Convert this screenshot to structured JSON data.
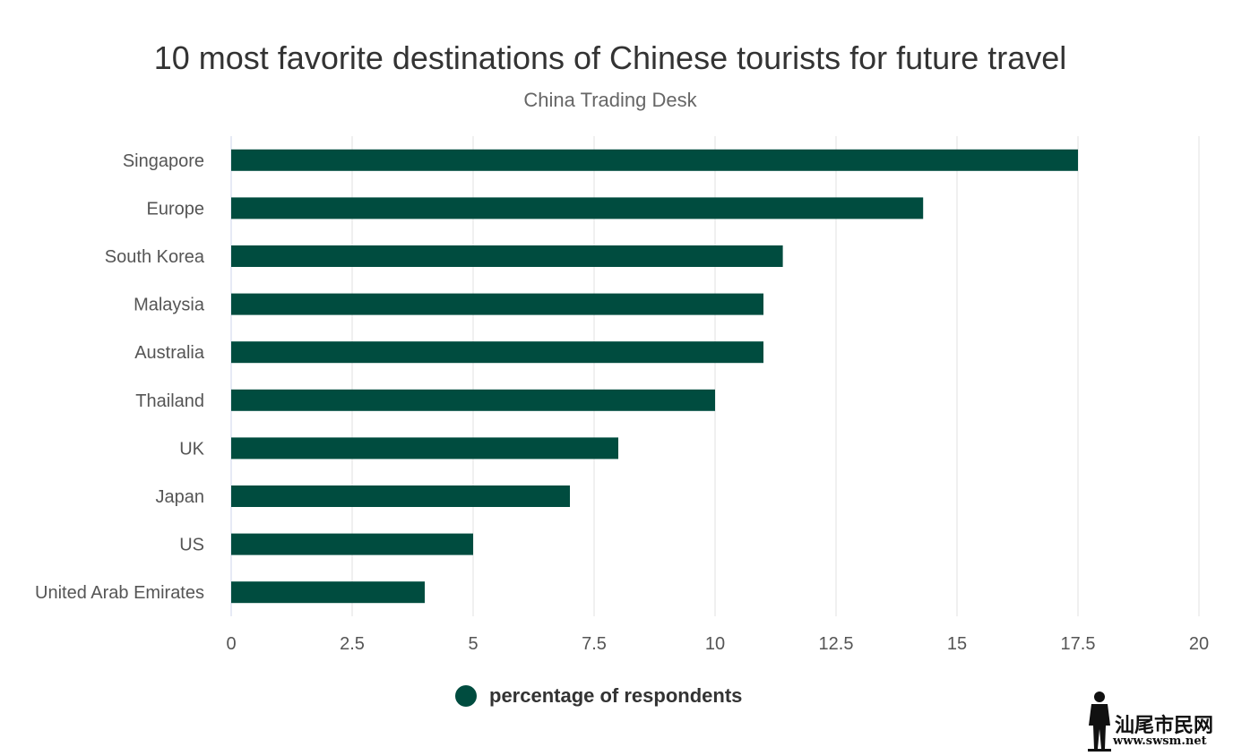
{
  "chart_data": {
    "type": "bar",
    "orientation": "horizontal",
    "title": "10 most favorite destinations of Chinese tourists for future travel",
    "subtitle": "China Trading Desk",
    "categories": [
      "Singapore",
      "Europe",
      "South Korea",
      "Malaysia",
      "Australia",
      "Thailand",
      "UK",
      "Japan",
      "US",
      "United Arab Emirates"
    ],
    "series": [
      {
        "name": "percentage of respondents",
        "values": [
          17.5,
          14.3,
          11.4,
          11.0,
          11.0,
          10.0,
          8.0,
          7.0,
          5.0,
          4.0
        ]
      }
    ],
    "xlim": [
      0,
      20
    ],
    "xticks": [
      "0",
      "2.5",
      "5",
      "7.5",
      "10",
      "12.5",
      "15",
      "17.5",
      "20"
    ],
    "xtick_values": [
      0,
      2.5,
      5,
      7.5,
      10,
      12.5,
      15,
      17.5,
      20
    ],
    "grid": true,
    "legend_position": "bottom-center",
    "bar_color": "#004c3f",
    "grid_color": "#e0e0e0",
    "axis_color": "#ccd6eb"
  },
  "watermark": {
    "text": "汕尾市民网",
    "url": "www.swsm.net"
  }
}
